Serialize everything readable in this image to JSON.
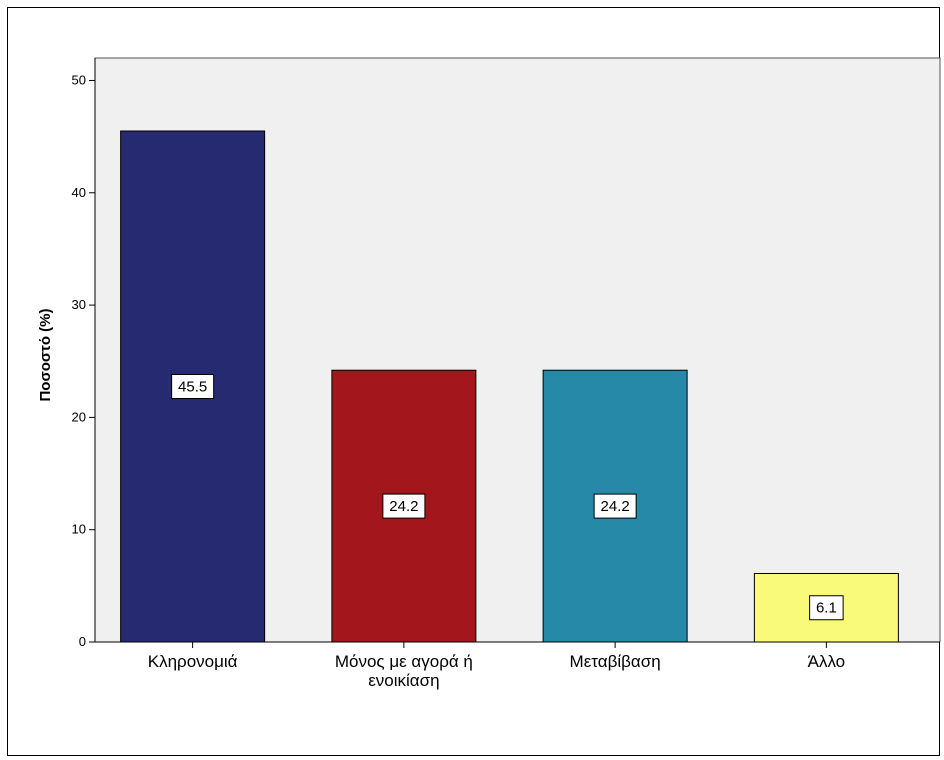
{
  "chart_data": {
    "type": "bar",
    "title": "",
    "xlabel": "",
    "ylabel": "Ποσοστό (%)",
    "ylim": [
      0,
      52
    ],
    "yticks": [
      0,
      10,
      20,
      30,
      40,
      50
    ],
    "grid": false,
    "categories": [
      [
        "Κληρονομιά"
      ],
      [
        "Μόνος με αγορά ή",
        "ενοικίαση"
      ],
      [
        "Μεταβίβαση"
      ],
      [
        "Άλλο"
      ]
    ],
    "values": [
      45.5,
      24.2,
      24.2,
      6.1
    ],
    "data_labels": [
      "45.5",
      "24.2",
      "24.2",
      "6.1"
    ],
    "colors": [
      "#262a70",
      "#a3161b",
      "#2689a8",
      "#f9f97a"
    ],
    "plot_background": "#f0f0f0"
  }
}
